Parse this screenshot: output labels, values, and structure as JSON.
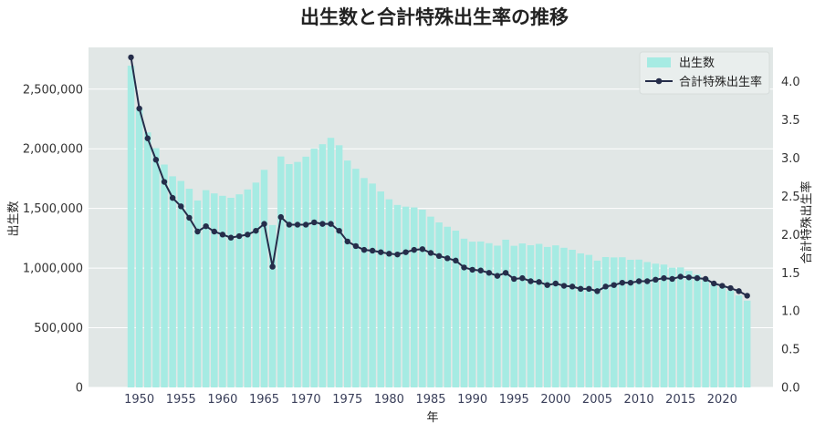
{
  "chart_data": {
    "type": "bar+line",
    "title": "出生数と合計特殊出生率の推移",
    "xlabel": "年",
    "ylabel_left": "出生数",
    "ylabel_right": "合計特殊出生率",
    "ylim_left": [
      0,
      2850000
    ],
    "ylim_right": [
      0,
      4.45
    ],
    "xlim": [
      1943.9,
      2026.1
    ],
    "x_ticks": [
      1950,
      1955,
      1960,
      1965,
      1970,
      1975,
      1980,
      1985,
      1990,
      1995,
      2000,
      2005,
      2010,
      2015,
      2020
    ],
    "x_tick_labels": [
      "1950",
      "1955",
      "1960",
      "1965",
      "1970",
      "1975",
      "1980",
      "1985",
      "1990",
      "1995",
      "2000",
      "2005",
      "2010",
      "2015",
      "2020"
    ],
    "y_left_ticks": [
      0,
      500000,
      1000000,
      1500000,
      2000000,
      2500000
    ],
    "y_left_tick_labels": [
      "0",
      "500,000",
      "1,000,000",
      "1,500,000",
      "2,000,000",
      "2,500,000"
    ],
    "y_right_ticks": [
      0,
      0.5,
      1.0,
      1.5,
      2.0,
      2.5,
      3.0,
      3.5,
      4.0
    ],
    "y_right_tick_labels": [
      "0.0",
      "0.5",
      "1.0",
      "1.5",
      "2.0",
      "2.5",
      "3.0",
      "3.5",
      "4.0"
    ],
    "grid": true,
    "legend_position": "top-right",
    "colors": {
      "plot_bg": "#e1e7e6",
      "bar": "#a6ebe3",
      "line": "#252d4a",
      "grid": "#ffffff"
    },
    "x": [
      1949,
      1950,
      1951,
      1952,
      1953,
      1954,
      1955,
      1956,
      1957,
      1958,
      1959,
      1960,
      1961,
      1962,
      1963,
      1964,
      1965,
      1966,
      1967,
      1968,
      1969,
      1970,
      1971,
      1972,
      1973,
      1974,
      1975,
      1976,
      1977,
      1978,
      1979,
      1980,
      1981,
      1982,
      1983,
      1984,
      1985,
      1986,
      1987,
      1988,
      1989,
      1990,
      1991,
      1992,
      1993,
      1994,
      1995,
      1996,
      1997,
      1998,
      1999,
      2000,
      2001,
      2002,
      2003,
      2004,
      2005,
      2006,
      2007,
      2008,
      2009,
      2010,
      2011,
      2012,
      2013,
      2014,
      2015,
      2016,
      2017,
      2018,
      2019,
      2020,
      2021,
      2022,
      2023
    ],
    "series": [
      {
        "name": "出生数",
        "kind": "bar",
        "values": [
          2696638,
          2337507,
          2137689,
          2005162,
          1868040,
          1769580,
          1730692,
          1665278,
          1566713,
          1653469,
          1626088,
          1606041,
          1589372,
          1618616,
          1659521,
          1716761,
          1823697,
          1360974,
          1935647,
          1871839,
          1889815,
          1934239,
          2000973,
          2038682,
          2091983,
          2029989,
          1901440,
          1832617,
          1755100,
          1708643,
          1642580,
          1576889,
          1529455,
          1515392,
          1508687,
          1489780,
          1431577,
          1382946,
          1346658,
          1314006,
          1246802,
          1221585,
          1223245,
          1208989,
          1188282,
          1238328,
          1187064,
          1206555,
          1191665,
          1203147,
          1177669,
          1190547,
          1170662,
          1153855,
          1123610,
          1110721,
          1062530,
          1092674,
          1089818,
          1091156,
          1070035,
          1071305,
          1050807,
          1037232,
          1029817,
          1003609,
          1005721,
          977242,
          946146,
          918400,
          865239,
          840835,
          811622,
          770759,
          727288
        ]
      },
      {
        "name": "合計特殊出生率",
        "kind": "line",
        "values": [
          4.32,
          3.65,
          3.26,
          2.98,
          2.69,
          2.48,
          2.37,
          2.22,
          2.04,
          2.11,
          2.04,
          2.0,
          1.96,
          1.98,
          2.0,
          2.05,
          2.14,
          1.58,
          2.23,
          2.13,
          2.13,
          2.13,
          2.16,
          2.14,
          2.14,
          2.05,
          1.91,
          1.85,
          1.8,
          1.79,
          1.77,
          1.75,
          1.74,
          1.77,
          1.8,
          1.81,
          1.76,
          1.72,
          1.69,
          1.66,
          1.57,
          1.54,
          1.53,
          1.5,
          1.46,
          1.5,
          1.42,
          1.43,
          1.39,
          1.38,
          1.34,
          1.36,
          1.33,
          1.32,
          1.29,
          1.29,
          1.26,
          1.32,
          1.34,
          1.37,
          1.37,
          1.39,
          1.39,
          1.41,
          1.43,
          1.42,
          1.45,
          1.44,
          1.43,
          1.42,
          1.36,
          1.33,
          1.3,
          1.26,
          1.2
        ]
      }
    ]
  }
}
